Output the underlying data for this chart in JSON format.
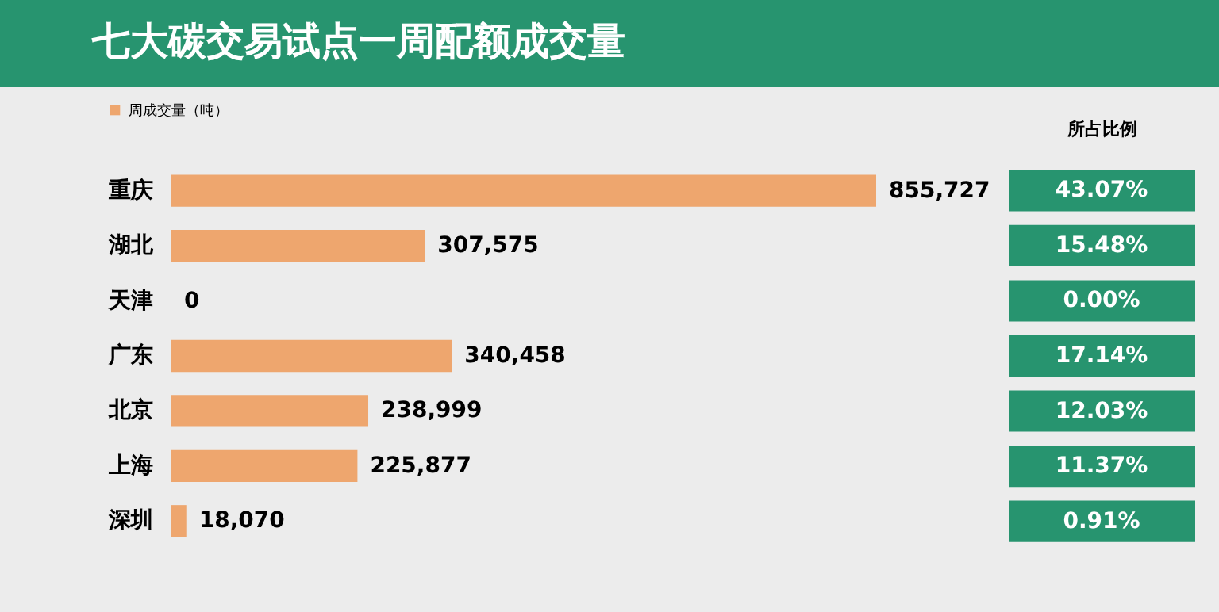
{
  "chart_data": [
    {
      "type": "bar",
      "orientation": "horizontal",
      "title": "七大碳交易试点一周配额成交量",
      "categories": [
        "重庆",
        "湖北",
        "天津",
        "广东",
        "北京",
        "上海",
        "深圳"
      ],
      "series": [
        {
          "name": "周成交量（吨）",
          "color": "#eea66e",
          "values": [
            855727,
            307575,
            0,
            340458,
            238999,
            225877,
            18070
          ],
          "value_labels": [
            "855,727",
            "307,575",
            "0",
            "340,458",
            "238,999",
            "225,877",
            "18,070"
          ]
        }
      ],
      "legend": "top left"
    },
    {
      "type": "other",
      "title": "所占比例",
      "annotations": [
        "43.07%",
        "15.48%",
        "0.00%",
        "17.14%",
        "12.03%",
        "11.37%",
        "0.91%"
      ]
    }
  ]
}
